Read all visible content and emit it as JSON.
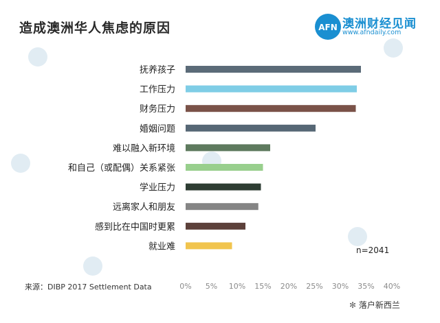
{
  "header": {
    "title": "造成澳洲华人焦虑的原因",
    "logo_text": "澳洲财经见闻",
    "logo_url": "www.afndaily.com",
    "logo_mark": "AFN"
  },
  "footer": {
    "source": "来源：DIBP 2017 Settlement Data",
    "wechat_account": "落户新西兰"
  },
  "annotation": "n=2041",
  "chart_data": {
    "type": "bar",
    "orientation": "horizontal",
    "title": "造成澳洲华人焦虑的原因",
    "categories": [
      "抚养孩子",
      "工作压力",
      "财务压力",
      "婚姻问题",
      "难以融入新环境",
      "和自己（或配偶）关系紧张",
      "学业压力",
      "远离家人和朋友",
      "感到比在中国时更累",
      "就业难"
    ],
    "values": [
      34,
      33.2,
      33,
      25.2,
      16.4,
      15,
      14.6,
      14.1,
      11.6,
      9
    ],
    "colors": [
      "#5b6b78",
      "#7fcde6",
      "#7a5248",
      "#566775",
      "#5e7a5e",
      "#98cf8d",
      "#2e3d33",
      "#858585",
      "#5c403a",
      "#f1c44e"
    ],
    "xlim": [
      0,
      40
    ],
    "xticks": [
      "0%",
      "5%",
      "10%",
      "15%",
      "20%",
      "25%",
      "30%",
      "35%",
      "40%"
    ],
    "grid": false
  }
}
